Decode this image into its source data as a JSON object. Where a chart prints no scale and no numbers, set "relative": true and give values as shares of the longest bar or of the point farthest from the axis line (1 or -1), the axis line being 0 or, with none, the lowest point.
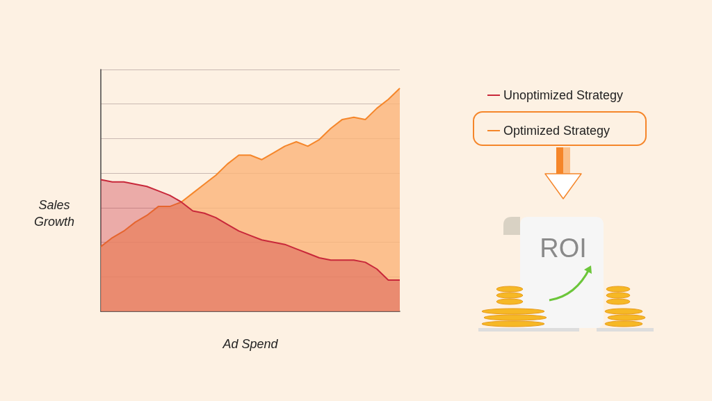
{
  "chart_data": {
    "type": "area",
    "xlabel": "Ad Spend",
    "ylabel": "Sales Growth",
    "relative": true,
    "grid": "y",
    "legend": "top right",
    "marker": "none",
    "annotations": [
      "ROI"
    ],
    "categories": [
      null,
      null,
      null,
      null,
      null,
      null,
      null,
      null,
      null,
      null,
      null,
      null,
      null,
      null,
      null,
      null,
      null,
      null,
      null,
      null,
      null,
      null,
      null,
      null,
      null,
      null,
      null
    ],
    "series": [
      {
        "name": "Unoptimized Strategy",
        "color": "#c8283a",
        "values": [
          0.59,
          0.58,
          0.58,
          0.57,
          0.56,
          0.54,
          0.52,
          0.49,
          0.45,
          0.44,
          0.42,
          0.39,
          0.36,
          0.34,
          0.32,
          0.31,
          0.3,
          0.28,
          0.26,
          0.24,
          0.23,
          0.23,
          0.23,
          0.22,
          0.19,
          0.14,
          0.14
        ]
      },
      {
        "name": "Optimized Strategy",
        "color": "#f5862a",
        "values": [
          0.29,
          0.33,
          0.36,
          0.4,
          0.43,
          0.47,
          0.47,
          0.49,
          0.53,
          0.57,
          0.61,
          0.66,
          0.7,
          0.7,
          0.68,
          0.71,
          0.74,
          0.76,
          0.74,
          0.77,
          0.82,
          0.86,
          0.87,
          0.86,
          0.91,
          0.95,
          1
        ]
      }
    ]
  }
}
